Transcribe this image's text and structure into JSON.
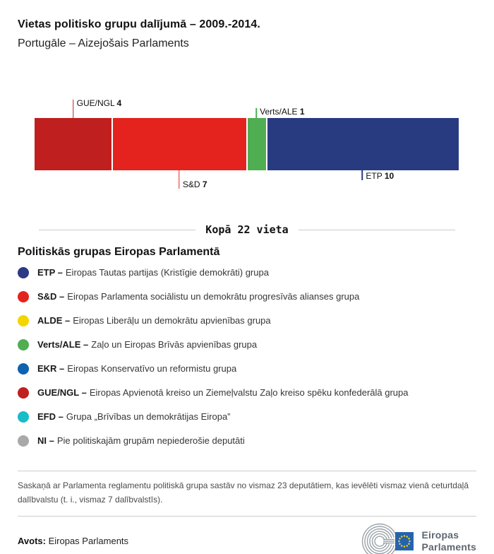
{
  "header": {
    "title": "Vietas politisko grupu dalījumā – 2009.-2014.",
    "subtitle": "Portugāle – Aizejošais Parlaments"
  },
  "chart_data": {
    "type": "bar",
    "title": "Vietas politisko grupu dalījumā – 2009.-2014.",
    "total_seats": 22,
    "total_label": "Kopā 22 vieta",
    "segments": [
      {
        "name": "GUE/NGL",
        "seats": 4,
        "color": "#bf1f1f",
        "label_position": "top",
        "tick_height": 26
      },
      {
        "name": "S&D",
        "seats": 7,
        "color": "#e5231e",
        "label_position": "bottom",
        "tick_height": 26
      },
      {
        "name": "Verts/ALE",
        "seats": 1,
        "color": "#4fae52",
        "label_position": "top",
        "tick_height": 14
      },
      {
        "name": "ETP",
        "seats": 10,
        "color": "#283a80",
        "label_position": "bottom",
        "tick_height": 14
      }
    ]
  },
  "legend": {
    "heading": "Politiskās grupas Eiropas Parlamentā",
    "items": [
      {
        "abbr": "ETP –",
        "desc": "Eiropas Tautas partijas (Kristīgie demokrāti) grupa",
        "color": "#2c3a84"
      },
      {
        "abbr": "S&D –",
        "desc": "Eiropas Parlamenta sociālistu un demokrātu progresīvās alianses grupa",
        "color": "#e5231e"
      },
      {
        "abbr": "ALDE –",
        "desc": "Eiropas Liberāļu un demokrātu apvienības grupa",
        "color": "#f4d500"
      },
      {
        "abbr": "Verts/ALE –",
        "desc": "Zaļo un Eiropas Brīvās apvienības grupa",
        "color": "#4fae52"
      },
      {
        "abbr": "EKR –",
        "desc": "Eiropas Konservatīvo un reformistu grupa",
        "color": "#0e62ae"
      },
      {
        "abbr": "GUE/NGL –",
        "desc": "Eiropas Apvienotā kreiso un Ziemeļvalstu Zaļo kreiso spēku konfederālā grupa",
        "color": "#bf1f1f"
      },
      {
        "abbr": "EFD –",
        "desc": "Grupa „Brīvības un demokrātijas Eiropa”",
        "color": "#19bcc9"
      },
      {
        "abbr": "NI –",
        "desc": "Pie politiskajām grupām nepiederošie deputāti",
        "color": "#a9a9a9"
      }
    ]
  },
  "footnote": "Saskaņā ar Parlamenta reglamentu politiskā grupa sastāv no vismaz 23 deputātiem, kas ievēlēti vismaz vienā ceturtdaļā dalībvalstu (t. i., vismaz 7 dalībvalstīs).",
  "source": {
    "label": "Avots:",
    "value": "Eiropas Parlaments"
  },
  "logo": {
    "line1": "Eiropas",
    "line2": "Parlaments",
    "flag_color": "#2663ad",
    "star_color": "#ffd617",
    "arc_color": "#9aa2a9"
  }
}
